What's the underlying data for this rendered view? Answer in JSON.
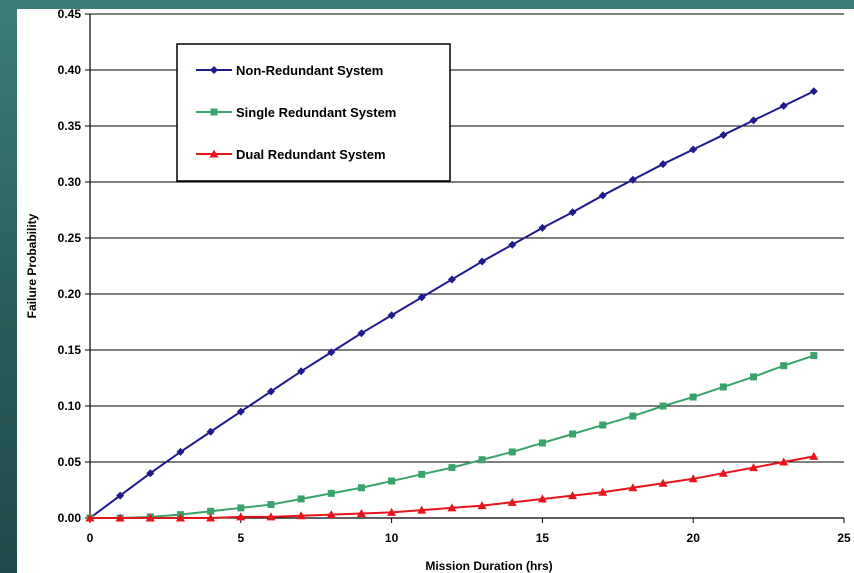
{
  "chart_data": {
    "type": "line",
    "title": "",
    "xlabel": "Mission Duration (hrs)",
    "ylabel": "Failure Probability",
    "xlim": [
      0,
      25
    ],
    "ylim": [
      0,
      0.45
    ],
    "x_ticks": [
      "0",
      "5",
      "10",
      "15",
      "20",
      "25"
    ],
    "y_ticks": [
      "0.00",
      "0.05",
      "0.10",
      "0.15",
      "0.20",
      "0.25",
      "0.30",
      "0.35",
      "0.40",
      "0.45"
    ],
    "grid": "horizontal",
    "legend_position": "top-left",
    "x": [
      0,
      1,
      2,
      3,
      4,
      5,
      6,
      7,
      8,
      9,
      10,
      11,
      12,
      13,
      14,
      15,
      16,
      17,
      18,
      19,
      20,
      21,
      22,
      23,
      24
    ],
    "series": [
      {
        "name": "Non-Redundant System",
        "color": "#1f1a8f",
        "marker": "diamond",
        "values": [
          0.0,
          0.02,
          0.04,
          0.059,
          0.077,
          0.095,
          0.113,
          0.131,
          0.148,
          0.165,
          0.181,
          0.197,
          0.213,
          0.229,
          0.244,
          0.259,
          0.273,
          0.288,
          0.302,
          0.316,
          0.329,
          0.342,
          0.355,
          0.368,
          0.381
        ]
      },
      {
        "name": "Single Redundant System",
        "color": "#3aa36b",
        "marker": "square",
        "values": [
          0.0,
          0.0,
          0.001,
          0.003,
          0.006,
          0.009,
          0.012,
          0.017,
          0.022,
          0.027,
          0.033,
          0.039,
          0.045,
          0.052,
          0.059,
          0.067,
          0.075,
          0.083,
          0.091,
          0.1,
          0.108,
          0.117,
          0.126,
          0.136,
          0.145
        ]
      },
      {
        "name": "Dual Redundant System",
        "color": "#e8141c",
        "marker": "triangle",
        "values": [
          0.0,
          0.0,
          0.0,
          0.0,
          0.0,
          0.001,
          0.001,
          0.002,
          0.003,
          0.004,
          0.005,
          0.007,
          0.009,
          0.011,
          0.014,
          0.017,
          0.02,
          0.023,
          0.027,
          0.031,
          0.035,
          0.04,
          0.045,
          0.05,
          0.055
        ]
      }
    ]
  }
}
